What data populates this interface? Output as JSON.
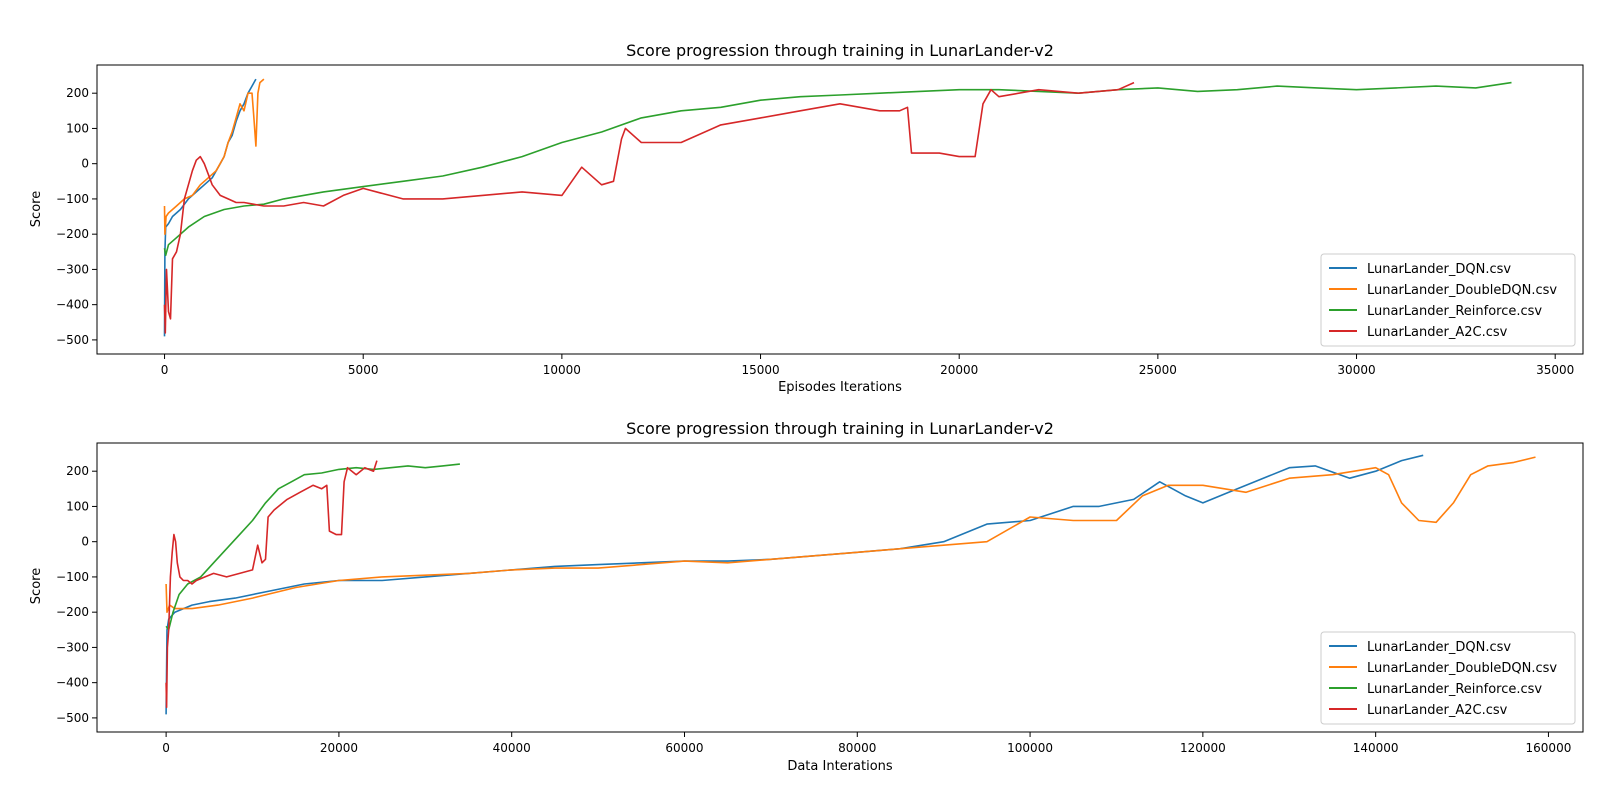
{
  "series_colors": [
    "#1f77b4",
    "#ff7f0e",
    "#2ca02c",
    "#d62728"
  ],
  "chart_data": [
    {
      "type": "line",
      "title": "Score progression through training in LunarLander-v2",
      "xlabel": "Episodes Iterations",
      "ylabel": "Score",
      "xlim": [
        -1700,
        35700
      ],
      "ylim": [
        -540,
        280
      ],
      "xticks": [
        0,
        5000,
        10000,
        15000,
        20000,
        25000,
        30000,
        35000
      ],
      "yticks": [
        -500,
        -400,
        -300,
        -200,
        -100,
        0,
        100,
        200
      ],
      "grid": false,
      "legend_position": "lower-right",
      "series": [
        {
          "name": "LunarLander_DQN.csv",
          "color": "#1f77b4",
          "x": [
            0,
            10,
            30,
            100,
            200,
            400,
            600,
            800,
            1000,
            1200,
            1400,
            1500,
            1600,
            1700,
            1800,
            1900,
            2000,
            2100,
            2200,
            2300
          ],
          "y": [
            -490,
            -250,
            -180,
            -170,
            -150,
            -130,
            -100,
            -80,
            -60,
            -40,
            0,
            20,
            60,
            80,
            120,
            150,
            170,
            200,
            220,
            240
          ]
        },
        {
          "name": "LunarLander_DoubleDQN.csv",
          "color": "#ff7f0e",
          "x": [
            0,
            10,
            40,
            100,
            300,
            500,
            700,
            900,
            1100,
            1300,
            1500,
            1600,
            1700,
            1800,
            1900,
            2000,
            2100,
            2200,
            2250,
            2300,
            2350,
            2400,
            2500
          ],
          "y": [
            -120,
            -200,
            -150,
            -140,
            -120,
            -100,
            -90,
            -60,
            -40,
            -20,
            20,
            60,
            90,
            130,
            170,
            150,
            200,
            200,
            130,
            50,
            200,
            230,
            240
          ]
        },
        {
          "name": "LunarLander_Reinforce.csv",
          "color": "#2ca02c",
          "x": [
            0,
            30,
            100,
            300,
            600,
            1000,
            1500,
            2000,
            2500,
            3000,
            4000,
            5000,
            6000,
            7000,
            8000,
            9000,
            10000,
            11000,
            12000,
            13000,
            14000,
            15000,
            16000,
            17000,
            18000,
            19000,
            20000,
            21000,
            22000,
            23000,
            24000,
            25000,
            26000,
            27000,
            28000,
            29000,
            30000,
            31000,
            32000,
            33000,
            33900
          ],
          "y": [
            -240,
            -260,
            -230,
            -210,
            -180,
            -150,
            -130,
            -120,
            -115,
            -100,
            -80,
            -65,
            -50,
            -35,
            -10,
            20,
            60,
            90,
            130,
            150,
            160,
            180,
            190,
            195,
            200,
            205,
            210,
            210,
            205,
            200,
            210,
            215,
            205,
            210,
            220,
            215,
            210,
            215,
            220,
            215,
            230
          ]
        },
        {
          "name": "LunarLander_A2C.csv",
          "color": "#d62728",
          "x": [
            0,
            20,
            50,
            100,
            150,
            200,
            300,
            400,
            500,
            600,
            700,
            800,
            900,
            1000,
            1100,
            1200,
            1400,
            1600,
            1800,
            2000,
            2500,
            3000,
            3500,
            4000,
            4500,
            5000,
            6000,
            7000,
            8000,
            9000,
            10000,
            10500,
            11000,
            11300,
            11500,
            11600,
            12000,
            13000,
            14000,
            15000,
            16000,
            17000,
            18000,
            18500,
            18700,
            18800,
            19500,
            20000,
            20400,
            20600,
            20800,
            21000,
            22000,
            23000,
            24000,
            24400
          ],
          "y": [
            -400,
            -480,
            -300,
            -420,
            -440,
            -270,
            -250,
            -200,
            -100,
            -60,
            -20,
            10,
            20,
            0,
            -30,
            -60,
            -90,
            -100,
            -110,
            -110,
            -120,
            -120,
            -110,
            -120,
            -90,
            -70,
            -100,
            -100,
            -90,
            -80,
            -90,
            -10,
            -60,
            -50,
            70,
            100,
            60,
            60,
            110,
            130,
            150,
            170,
            150,
            150,
            160,
            30,
            30,
            20,
            20,
            170,
            210,
            190,
            210,
            200,
            210,
            230
          ]
        }
      ]
    },
    {
      "type": "line",
      "title": "Score progression through training in LunarLander-v2",
      "xlabel": "Data Interations",
      "ylabel": "Score",
      "xlim": [
        -8000,
        164000
      ],
      "ylim": [
        -540,
        280
      ],
      "xticks": [
        0,
        20000,
        40000,
        60000,
        80000,
        100000,
        120000,
        140000,
        160000
      ],
      "yticks": [
        -500,
        -400,
        -300,
        -200,
        -100,
        0,
        100,
        200
      ],
      "grid": false,
      "legend_position": "lower-right",
      "series": [
        {
          "name": "LunarLander_DQN.csv",
          "color": "#1f77b4",
          "x": [
            0,
            100,
            300,
            1000,
            3000,
            5000,
            8000,
            12000,
            16000,
            20000,
            25000,
            30000,
            35000,
            40000,
            45000,
            50000,
            55000,
            60000,
            65000,
            70000,
            75000,
            80000,
            85000,
            90000,
            95000,
            100000,
            105000,
            108000,
            112000,
            115000,
            118000,
            120000,
            123000,
            126000,
            130000,
            133000,
            137000,
            140000,
            143000,
            145500
          ],
          "y": [
            -490,
            -250,
            -220,
            -200,
            -180,
            -170,
            -160,
            -140,
            -120,
            -110,
            -110,
            -100,
            -90,
            -80,
            -70,
            -65,
            -60,
            -55,
            -55,
            -50,
            -40,
            -30,
            -20,
            0,
            50,
            60,
            100,
            100,
            120,
            170,
            130,
            110,
            140,
            170,
            210,
            215,
            180,
            200,
            230,
            245
          ]
        },
        {
          "name": "LunarLander_DoubleDQN.csv",
          "color": "#ff7f0e",
          "x": [
            0,
            100,
            400,
            1000,
            3000,
            6000,
            10000,
            15000,
            20000,
            25000,
            30000,
            35000,
            40000,
            45000,
            50000,
            55000,
            60000,
            65000,
            70000,
            75000,
            80000,
            85000,
            90000,
            95000,
            100000,
            105000,
            110000,
            113000,
            116000,
            120000,
            125000,
            130000,
            135000,
            140000,
            141500,
            143000,
            145000,
            147000,
            149000,
            151000,
            153000,
            156000,
            158500
          ],
          "y": [
            -120,
            -200,
            -180,
            -190,
            -190,
            -180,
            -160,
            -130,
            -110,
            -100,
            -95,
            -90,
            -80,
            -75,
            -75,
            -65,
            -55,
            -60,
            -50,
            -40,
            -30,
            -20,
            -10,
            0,
            70,
            60,
            60,
            130,
            160,
            160,
            140,
            180,
            190,
            210,
            190,
            110,
            60,
            55,
            110,
            190,
            215,
            225,
            240
          ]
        },
        {
          "name": "LunarLander_Reinforce.csv",
          "color": "#2ca02c",
          "x": [
            0,
            300,
            800,
            1500,
            2500,
            4000,
            5500,
            7000,
            8500,
            10000,
            11500,
            13000,
            14500,
            16000,
            18000,
            20000,
            22000,
            24000,
            26000,
            28000,
            30000,
            32000,
            34000
          ],
          "y": [
            -240,
            -250,
            -200,
            -150,
            -120,
            -100,
            -60,
            -20,
            20,
            60,
            110,
            150,
            170,
            190,
            195,
            205,
            210,
            205,
            210,
            215,
            210,
            215,
            220
          ]
        },
        {
          "name": "LunarLander_A2C.csv",
          "color": "#d62728",
          "x": [
            0,
            60,
            150,
            300,
            500,
            700,
            900,
            1100,
            1300,
            1600,
            2000,
            2500,
            3000,
            3500,
            4500,
            5500,
            7000,
            8500,
            10000,
            10600,
            11100,
            11500,
            11800,
            12500,
            14000,
            15500,
            17000,
            18000,
            18600,
            18900,
            19700,
            20300,
            20600,
            21000,
            22000,
            23000,
            24000,
            24400
          ],
          "y": [
            -400,
            -470,
            -300,
            -250,
            -100,
            -30,
            20,
            0,
            -60,
            -100,
            -110,
            -110,
            -120,
            -110,
            -100,
            -90,
            -100,
            -90,
            -80,
            -10,
            -60,
            -50,
            70,
            90,
            120,
            140,
            160,
            150,
            160,
            30,
            20,
            20,
            170,
            210,
            190,
            210,
            200,
            230
          ]
        }
      ]
    }
  ]
}
